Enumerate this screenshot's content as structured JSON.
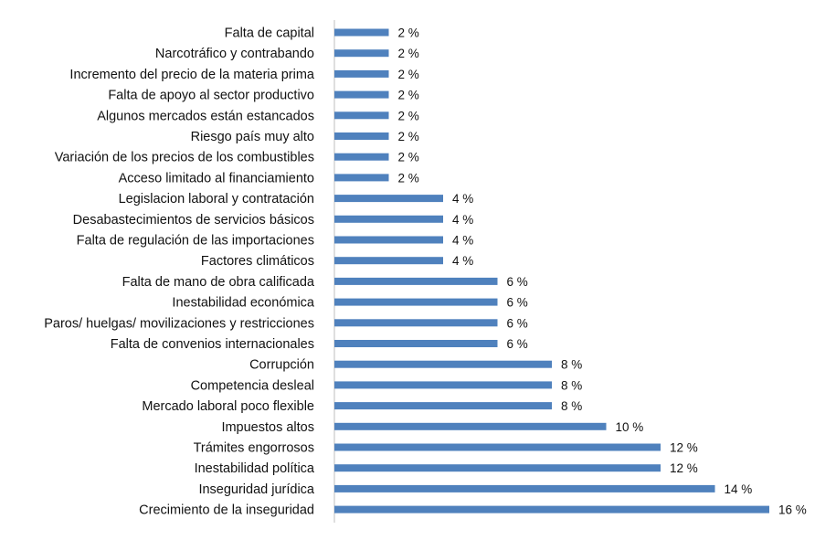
{
  "chart_data": {
    "type": "bar",
    "orientation": "horizontal",
    "categories": [
      "Falta de capital",
      "Narcotráfico y contrabando",
      "Incremento del precio de la materia prima",
      "Falta de apoyo al sector productivo",
      "Algunos mercados están estancados",
      "Riesgo país muy alto",
      "Variación de los precios de los combustibles",
      "Acceso limitado al financiamiento",
      "Legislacion laboral y contratación",
      "Desabastecimientos de servicios básicos",
      "Falta de regulación de las importaciones",
      "Factores climáticos",
      "Falta de mano de obra calificada",
      "Inestabilidad económica",
      "Paros/ huelgas/ movilizaciones y restricciones",
      "Falta de convenios internacionales",
      "Corrupción",
      "Competencia desleal",
      "Mercado laboral poco flexible",
      "Impuestos altos",
      "Trámites engorrosos",
      "Inestabilidad política",
      "Inseguridad jurídica",
      "Crecimiento de la inseguridad"
    ],
    "values": [
      2,
      2,
      2,
      2,
      2,
      2,
      2,
      2,
      4,
      4,
      4,
      4,
      6,
      6,
      6,
      6,
      8,
      8,
      8,
      10,
      12,
      12,
      14,
      16
    ],
    "value_labels": [
      "2 %",
      "2 %",
      "2 %",
      "2 %",
      "2 %",
      "2 %",
      "2 %",
      "2 %",
      "4 %",
      "4 %",
      "4 %",
      "4 %",
      "6 %",
      "6 %",
      "6 %",
      "6 %",
      "8 %",
      "8 %",
      "8 %",
      "10 %",
      "12 %",
      "12 %",
      "14 %",
      "16 %"
    ],
    "xlim": [
      0,
      16
    ],
    "bar_color": "#4f81bd",
    "grid": false,
    "legend": "none"
  }
}
